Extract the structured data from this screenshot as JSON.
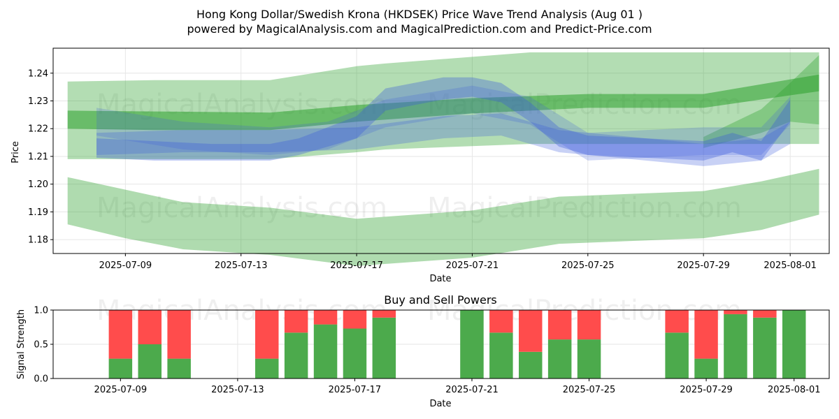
{
  "title_line1": "Hong Kong Dollar/Swedish Krona (HKDSEK) Price Wave Trend Analysis (Aug 01 )",
  "title_line2": "powered by MagicalAnalysis.com and MagicalPrediction.com and Predict-Price.com",
  "watermarks": [
    "MagicalAnalysis.com",
    "MagicalPrediction.com"
  ],
  "colors": {
    "green_band": "#2ca02c",
    "blue_band": "#3b5bdb",
    "buy": "#4caa4c",
    "sell": "#ff4c4c",
    "grid": "#e6e6e6"
  },
  "chart_data": [
    {
      "type": "area",
      "title": "",
      "xlabel": "Date",
      "ylabel": "Price",
      "x_range": [
        "2025-07-07",
        "2025-08-02"
      ],
      "ylim": [
        1.175,
        1.249
      ],
      "x_ticks": [
        "2025-07-09",
        "2025-07-13",
        "2025-07-17",
        "2025-07-21",
        "2025-07-25",
        "2025-07-29",
        "2025-08-01"
      ],
      "y_ticks": [
        1.18,
        1.19,
        1.2,
        1.21,
        1.22,
        1.23,
        1.24
      ],
      "grid": true,
      "green_bands": [
        {
          "name": "",
          "x": [
            "2025-07-07",
            "2025-07-10",
            "2025-07-14",
            "2025-07-17",
            "2025-07-18",
            "2025-07-23",
            "2025-07-29",
            "2025-08-02"
          ],
          "upper": [
            1.237,
            1.2375,
            1.2375,
            1.2425,
            1.2435,
            1.2475,
            1.2475,
            1.2475
          ],
          "lower": [
            1.209,
            1.209,
            1.209,
            1.2115,
            1.2125,
            1.2145,
            1.2145,
            1.2145
          ]
        },
        {
          "name": "",
          "x": [
            "2025-07-07",
            "2025-07-10",
            "2025-07-14",
            "2025-07-17",
            "2025-07-21",
            "2025-07-25",
            "2025-07-29",
            "2025-08-02"
          ],
          "upper": [
            1.2265,
            1.2262,
            1.2258,
            1.2285,
            1.231,
            1.2325,
            1.2325,
            1.2395
          ],
          "lower": [
            1.22,
            1.2195,
            1.2195,
            1.2225,
            1.2255,
            1.2275,
            1.2275,
            1.2335
          ]
        },
        {
          "name": "",
          "x": [
            "2025-07-07",
            "2025-07-09",
            "2025-07-11",
            "2025-07-14",
            "2025-07-17",
            "2025-07-21",
            "2025-07-24",
            "2025-07-29",
            "2025-07-31",
            "2025-08-02"
          ],
          "upper": [
            1.2025,
            1.198,
            1.1935,
            1.1915,
            1.1875,
            1.1905,
            1.1955,
            1.1975,
            1.201,
            1.2055
          ],
          "lower": [
            1.1855,
            1.1805,
            1.1765,
            1.1745,
            1.1705,
            1.1735,
            1.1785,
            1.1805,
            1.1835,
            1.189
          ]
        },
        {
          "name": "",
          "x": [
            "2025-07-29",
            "2025-07-31",
            "2025-08-01",
            "2025-08-02"
          ],
          "upper": [
            1.217,
            1.227,
            1.2365,
            1.2465
          ],
          "lower": [
            1.213,
            1.2185,
            1.2225,
            1.2215
          ]
        }
      ],
      "blue_bands": [
        {
          "name": "",
          "x": [
            "2025-07-08",
            "2025-07-10",
            "2025-07-12",
            "2025-07-14",
            "2025-07-15",
            "2025-07-17",
            "2025-07-18",
            "2025-07-20",
            "2025-07-21",
            "2025-07-22",
            "2025-07-23",
            "2025-07-24",
            "2025-07-25",
            "2025-07-27",
            "2025-07-29",
            "2025-07-30",
            "2025-07-31",
            "2025-08-01"
          ],
          "upper": [
            1.2165,
            1.2155,
            1.2145,
            1.2145,
            1.2165,
            1.2245,
            1.2345,
            1.2385,
            1.2385,
            1.2365,
            1.2295,
            1.2205,
            1.2175,
            1.2165,
            1.2155,
            1.2185,
            1.2155,
            1.2305
          ],
          "lower": [
            1.2095,
            1.2085,
            1.2085,
            1.2085,
            1.2105,
            1.2165,
            1.2265,
            1.2305,
            1.2315,
            1.2295,
            1.2225,
            1.2135,
            1.2105,
            1.2095,
            1.2085,
            1.2115,
            1.2085,
            1.2225
          ]
        },
        {
          "name": "",
          "x": [
            "2025-07-08",
            "2025-07-11",
            "2025-07-14",
            "2025-07-16",
            "2025-07-18",
            "2025-07-21",
            "2025-07-23",
            "2025-07-25",
            "2025-07-29",
            "2025-07-31",
            "2025-08-01"
          ],
          "upper": [
            1.2275,
            1.2225,
            1.2205,
            1.2225,
            1.2305,
            1.2355,
            1.2315,
            1.2185,
            1.2205,
            1.2205,
            1.2315
          ],
          "lower": [
            1.2175,
            1.2125,
            1.2105,
            1.2125,
            1.2205,
            1.2255,
            1.2215,
            1.2085,
            1.2105,
            1.2105,
            1.2215
          ]
        },
        {
          "name": "",
          "x": [
            "2025-07-08",
            "2025-07-11",
            "2025-07-14",
            "2025-07-17",
            "2025-07-20",
            "2025-07-22",
            "2025-07-24",
            "2025-07-27",
            "2025-07-29",
            "2025-07-31",
            "2025-08-01"
          ],
          "upper": [
            1.2185,
            1.2195,
            1.2195,
            1.2205,
            1.2245,
            1.2255,
            1.2195,
            1.2165,
            1.2145,
            1.2165,
            1.2225
          ],
          "lower": [
            1.2105,
            1.2115,
            1.2115,
            1.2125,
            1.2165,
            1.2175,
            1.2115,
            1.2085,
            1.2065,
            1.2085,
            1.2145
          ]
        }
      ]
    },
    {
      "type": "bar",
      "title": "Buy and Sell Powers",
      "xlabel": "Date",
      "ylabel": "Signal Strength",
      "ylim": [
        0,
        1.0
      ],
      "y_ticks": [
        0.0,
        0.5,
        1.0
      ],
      "x_range": [
        "2025-07-07",
        "2025-08-02"
      ],
      "x_ticks": [
        "2025-07-09",
        "2025-07-13",
        "2025-07-17",
        "2025-07-21",
        "2025-07-25",
        "2025-07-29",
        "2025-08-01"
      ],
      "categories": [
        "2025-07-09",
        "2025-07-10",
        "2025-07-11",
        "2025-07-14",
        "2025-07-15",
        "2025-07-16",
        "2025-07-17",
        "2025-07-18",
        "2025-07-21",
        "2025-07-22",
        "2025-07-23",
        "2025-07-24",
        "2025-07-25",
        "2025-07-28",
        "2025-07-29",
        "2025-07-30",
        "2025-07-31",
        "2025-08-01"
      ],
      "series": [
        {
          "name": "Buy",
          "values": [
            0.29,
            0.5,
            0.29,
            0.29,
            0.67,
            0.79,
            0.73,
            0.89,
            1.0,
            0.67,
            0.39,
            0.57,
            0.57,
            0.67,
            0.29,
            0.94,
            0.89,
            1.0
          ]
        },
        {
          "name": "Sell",
          "values": [
            0.71,
            0.5,
            0.71,
            0.71,
            0.33,
            0.21,
            0.27,
            0.11,
            0.0,
            0.33,
            0.61,
            0.43,
            0.43,
            0.33,
            0.71,
            0.06,
            0.11,
            0.0
          ]
        }
      ]
    }
  ]
}
